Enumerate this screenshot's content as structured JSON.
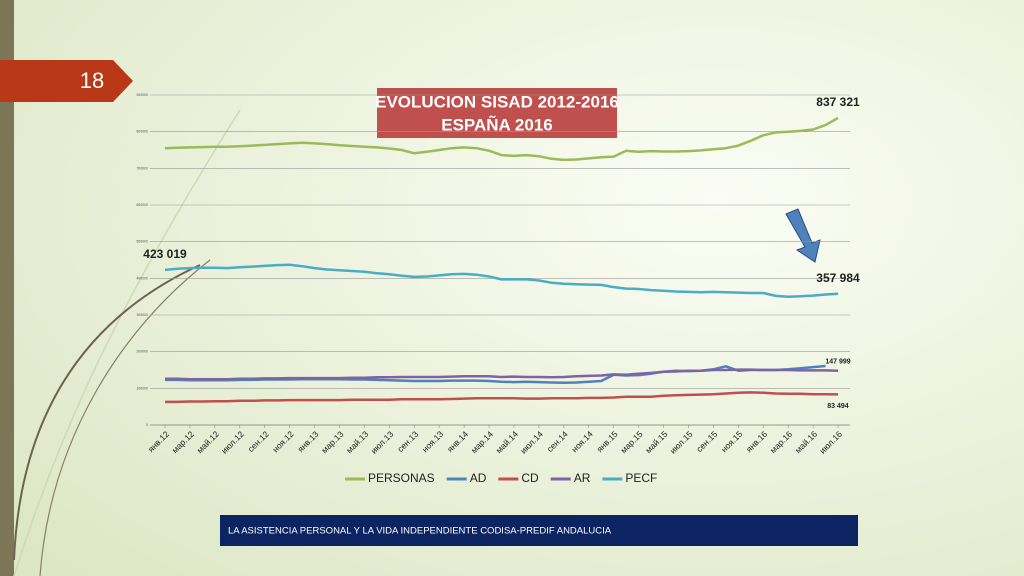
{
  "slide_number": "18",
  "footer": "LA ASISTENCIA PERSONAL Y LA VIDA INDEPENDIENTE CODISA-PREDIF ANDALUCIA",
  "chart_data": {
    "type": "line",
    "title": [
      "EVOLUCION SISAD 2012-2016",
      "ESPAÑA  2016"
    ],
    "categories": [
      "янв.12",
      null,
      "мар.12",
      null,
      "май.12",
      null,
      "июл.12",
      null,
      "сен.12",
      null,
      "ноя.12",
      null,
      "янв.13",
      null,
      "мар.13",
      null,
      "май.13",
      null,
      "июл.13",
      null,
      "сен.13",
      null,
      "ноя.13",
      null,
      "янв.14",
      null,
      "мар.14",
      null,
      "май.14",
      null,
      "июл.14",
      null,
      "сен.14",
      null,
      "ноя.14",
      null,
      "янв.15",
      null,
      "мар.15",
      null,
      "май.15",
      null,
      "июл.15",
      null,
      "сен.15",
      null,
      "ноя.15",
      null,
      "янв.16",
      null,
      "мар.16",
      null,
      "май.16",
      null,
      "июл.16"
    ],
    "ylim": [
      0,
      900000
    ],
    "yticks": [
      0,
      100000,
      200000,
      300000,
      400000,
      500000,
      600000,
      700000,
      800000,
      900000
    ],
    "grid": true,
    "legend": "bottom",
    "series": [
      {
        "name": "PERSONAS",
        "color": "#9bbb59",
        "values": [
          755000,
          756000,
          757000,
          758000,
          759000,
          759000,
          760000,
          762000,
          764000,
          766000,
          768000,
          770000,
          768000,
          766000,
          763000,
          761000,
          759000,
          757000,
          754000,
          750000,
          741000,
          745000,
          750000,
          755000,
          757000,
          755000,
          748000,
          736000,
          734000,
          736000,
          733000,
          726000,
          723000,
          724000,
          727000,
          730000,
          732000,
          748000,
          745000,
          747000,
          746000,
          746000,
          747000,
          749000,
          752000,
          755000,
          762000,
          775000,
          790000,
          798000,
          800000,
          802000,
          806000,
          818000,
          837321
        ],
        "value_labels": [
          null,
          null,
          null,
          null,
          null,
          null,
          null,
          null,
          null,
          null,
          null,
          null,
          null,
          null,
          null,
          null,
          null,
          null,
          null,
          null,
          null,
          null,
          null,
          null,
          null,
          null,
          null,
          null,
          null,
          null,
          null,
          null,
          null,
          null,
          null,
          null,
          null,
          null,
          null,
          null,
          null,
          null,
          null,
          null,
          null,
          null,
          null,
          null,
          null,
          null,
          null,
          null,
          null,
          null,
          "837 321"
        ]
      },
      {
        "name": "AD",
        "color": "#4f81bd",
        "values": [
          123000,
          123000,
          122000,
          122000,
          122000,
          122000,
          123000,
          123000,
          124000,
          124000,
          124000,
          125000,
          125000,
          125000,
          125000,
          124000,
          124000,
          123000,
          122000,
          121000,
          120000,
          120000,
          120000,
          121000,
          121000,
          121000,
          120000,
          118000,
          117000,
          118000,
          117000,
          116000,
          115000,
          116000,
          118000,
          120000,
          137000,
          135000,
          136000,
          140000,
          145000,
          148000,
          147000,
          148000,
          152000,
          160000,
          148000,
          150000,
          150000,
          150000,
          152000,
          155000,
          158000,
          161000,
          null
        ]
      },
      {
        "name": "CD",
        "color": "#c0504d",
        "values": [
          63000,
          63000,
          64000,
          64000,
          65000,
          65000,
          66000,
          66000,
          67000,
          67000,
          68000,
          68000,
          68000,
          68000,
          68000,
          69000,
          69000,
          69000,
          69000,
          70000,
          70000,
          70000,
          70000,
          71000,
          72000,
          73000,
          73000,
          73000,
          73000,
          72000,
          72000,
          73000,
          73000,
          73000,
          74000,
          74000,
          75000,
          77000,
          77000,
          77000,
          80000,
          81000,
          82000,
          83000,
          84000,
          86000,
          88000,
          89000,
          88000,
          86000,
          85000,
          85000,
          84000,
          84000,
          83494
        ],
        "value_labels": [
          null,
          null,
          null,
          null,
          null,
          null,
          null,
          null,
          null,
          null,
          null,
          null,
          null,
          null,
          null,
          null,
          null,
          null,
          null,
          null,
          null,
          null,
          null,
          null,
          null,
          null,
          null,
          null,
          null,
          null,
          null,
          null,
          null,
          null,
          null,
          null,
          null,
          null,
          null,
          null,
          null,
          null,
          null,
          null,
          null,
          null,
          null,
          null,
          null,
          null,
          null,
          null,
          null,
          null,
          "83 494"
        ]
      },
      {
        "name": "AR",
        "color": "#8064a2",
        "values": [
          126000,
          126000,
          125000,
          125000,
          125000,
          125000,
          126000,
          126000,
          127000,
          127000,
          128000,
          128000,
          128000,
          128000,
          128000,
          129000,
          129000,
          130000,
          130000,
          131000,
          131000,
          131000,
          131000,
          132000,
          133000,
          133000,
          133000,
          131000,
          132000,
          131000,
          131000,
          130000,
          131000,
          133000,
          134000,
          135000,
          138000,
          137000,
          140000,
          142000,
          145000,
          146000,
          148000,
          148000,
          150000,
          150000,
          151000,
          151000,
          150000,
          150000,
          150000,
          149000,
          149000,
          149000,
          147999
        ],
        "value_labels": [
          null,
          null,
          null,
          null,
          null,
          null,
          null,
          null,
          null,
          null,
          null,
          null,
          null,
          null,
          null,
          null,
          null,
          null,
          null,
          null,
          null,
          null,
          null,
          null,
          null,
          null,
          null,
          null,
          null,
          null,
          null,
          null,
          null,
          null,
          null,
          null,
          null,
          null,
          null,
          null,
          null,
          null,
          null,
          null,
          null,
          null,
          null,
          null,
          null,
          null,
          null,
          null,
          null,
          null,
          "147 999"
        ]
      },
      {
        "name": "PECF",
        "color": "#4bacc6",
        "values": [
          423019,
          426000,
          428000,
          429000,
          429000,
          428000,
          430000,
          432000,
          434000,
          436000,
          437000,
          433000,
          428000,
          424000,
          422000,
          420000,
          418000,
          414000,
          411000,
          407000,
          404000,
          405000,
          408000,
          411000,
          412000,
          410000,
          405000,
          397000,
          397000,
          397000,
          394000,
          388000,
          385000,
          384000,
          383000,
          382000,
          376000,
          372000,
          371000,
          368000,
          366000,
          364000,
          363000,
          362000,
          363000,
          362000,
          361000,
          360000,
          360000,
          352000,
          350000,
          351000,
          353000,
          356000,
          357984
        ],
        "value_labels": [
          "423 019",
          null,
          null,
          null,
          null,
          null,
          null,
          null,
          null,
          null,
          null,
          null,
          null,
          null,
          null,
          null,
          null,
          null,
          null,
          null,
          null,
          null,
          null,
          null,
          null,
          null,
          null,
          null,
          null,
          null,
          null,
          null,
          null,
          null,
          null,
          null,
          null,
          null,
          null,
          null,
          null,
          null,
          null,
          null,
          null,
          null,
          null,
          null,
          null,
          null,
          null,
          null,
          null,
          null,
          "357 984"
        ]
      }
    ]
  }
}
